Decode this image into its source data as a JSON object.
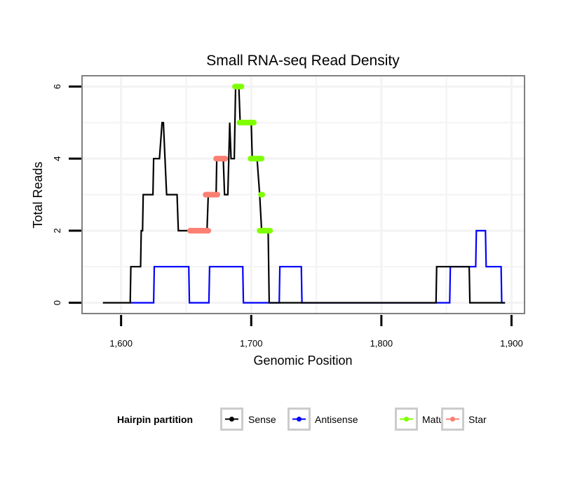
{
  "chart_data": {
    "type": "line",
    "subtype": "step",
    "title": "Small RNA-seq Read Density",
    "xlabel": "Genomic Position",
    "ylabel": "Total Reads",
    "xlim": [
      1570,
      1910
    ],
    "ylim": [
      -0.3,
      6.3
    ],
    "x_ticks": [
      1600,
      1700,
      1800,
      1900
    ],
    "x_tick_labels": [
      "1,600",
      "1,700",
      "1,800",
      "1,900"
    ],
    "y_ticks": [
      0,
      2,
      4,
      6
    ],
    "y_tick_labels": [
      "0",
      "2",
      "4",
      "6"
    ],
    "x_grid": [
      1650,
      1750,
      1850
    ],
    "y_grid": [
      1,
      3,
      5
    ],
    "grid": true,
    "legend": {
      "title": "Hairpin partition",
      "position": "bottom",
      "entries": [
        {
          "name": "Sense",
          "color": "#000000"
        },
        {
          "name": "Antisense",
          "color": "#0000ff"
        },
        {
          "name": "Mature",
          "color": "#7fff00"
        },
        {
          "name": "Star",
          "color": "#fa8072"
        }
      ]
    },
    "series": [
      {
        "name": "Sense",
        "color": "#000000",
        "points": [
          [
            1586,
            0
          ],
          [
            1607,
            0
          ],
          [
            1607.5,
            1
          ],
          [
            1615,
            1
          ],
          [
            1615.5,
            2
          ],
          [
            1616.5,
            2
          ],
          [
            1617,
            3
          ],
          [
            1624.5,
            3
          ],
          [
            1625,
            4
          ],
          [
            1629.5,
            4
          ],
          [
            1631.5,
            5
          ],
          [
            1632.5,
            5
          ],
          [
            1635,
            3
          ],
          [
            1643,
            3
          ],
          [
            1644,
            2
          ],
          [
            1666,
            2
          ],
          [
            1667,
            3
          ],
          [
            1673,
            3
          ],
          [
            1673.5,
            4
          ],
          [
            1678.5,
            4
          ],
          [
            1679.5,
            3
          ],
          [
            1682,
            3
          ],
          [
            1683.5,
            5
          ],
          [
            1684.5,
            4
          ],
          [
            1687,
            4
          ],
          [
            1688,
            6
          ],
          [
            1690.5,
            6
          ],
          [
            1691.5,
            5
          ],
          [
            1700,
            5
          ],
          [
            1700.8,
            4
          ],
          [
            1704.5,
            4
          ],
          [
            1706.5,
            3
          ],
          [
            1708,
            2
          ],
          [
            1713,
            2
          ],
          [
            1713.8,
            0
          ],
          [
            1842,
            0
          ],
          [
            1842.5,
            1
          ],
          [
            1867.5,
            1
          ],
          [
            1868,
            0
          ],
          [
            1895,
            0
          ]
        ]
      },
      {
        "name": "Antisense",
        "color": "#0000ff",
        "points": [
          [
            1607,
            0
          ],
          [
            1625,
            0
          ],
          [
            1625.5,
            1
          ],
          [
            1652,
            1
          ],
          [
            1652.5,
            0
          ],
          [
            1667.5,
            0
          ],
          [
            1668,
            1
          ],
          [
            1693.5,
            1
          ],
          [
            1694,
            0
          ],
          [
            1721.5,
            0
          ],
          [
            1722,
            1
          ],
          [
            1738.5,
            1
          ],
          [
            1739,
            0
          ],
          [
            1852.5,
            0
          ],
          [
            1853,
            1
          ],
          [
            1872.5,
            1
          ],
          [
            1873,
            2
          ],
          [
            1880,
            2
          ],
          [
            1880.5,
            1
          ],
          [
            1892,
            1
          ],
          [
            1892.5,
            0
          ],
          [
            1895,
            0
          ]
        ]
      }
    ],
    "segments": [
      {
        "name": "Star",
        "color": "#fa8072",
        "y": 2,
        "x_start": 1653,
        "x_end": 1667
      },
      {
        "name": "Star",
        "color": "#fa8072",
        "y": 3,
        "x_start": 1665,
        "x_end": 1674
      },
      {
        "name": "Star",
        "color": "#fa8072",
        "y": 4,
        "x_start": 1673,
        "x_end": 1680
      },
      {
        "name": "Mature",
        "color": "#7fff00",
        "y": 6,
        "x_start": 1687.5,
        "x_end": 1692.5
      },
      {
        "name": "Mature",
        "color": "#7fff00",
        "y": 5,
        "x_start": 1691,
        "x_end": 1702
      },
      {
        "name": "Mature",
        "color": "#7fff00",
        "y": 4,
        "x_start": 1699.5,
        "x_end": 1708
      },
      {
        "name": "Mature",
        "color": "#7fff00",
        "y": 3,
        "x_start": 1707.5,
        "x_end": 1708.5
      },
      {
        "name": "Mature",
        "color": "#7fff00",
        "y": 2,
        "x_start": 1706.5,
        "x_end": 1714.5
      }
    ]
  }
}
